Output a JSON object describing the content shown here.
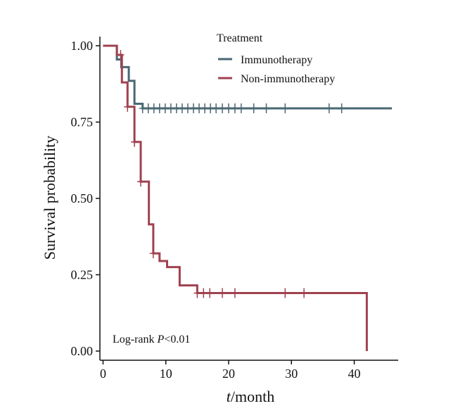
{
  "chart_data": {
    "type": "line",
    "subtype": "kaplan-meier step",
    "xlabel": {
      "italic": "t",
      "rest": "/month"
    },
    "ylabel": "Survival probability",
    "xlim": [
      -0.5,
      47
    ],
    "ylim": [
      -0.03,
      1.03
    ],
    "xticks": [
      0,
      10,
      20,
      30,
      40
    ],
    "yticks": [
      0.0,
      0.25,
      0.5,
      0.75,
      1.0
    ],
    "ytick_labels": [
      "0.00",
      "0.25",
      "0.50",
      "0.75",
      "1.00"
    ],
    "grid": false,
    "legend": {
      "title": "Treatment",
      "position": "top-right"
    },
    "annotation": {
      "prefix": "Log-rank ",
      "italic": "P",
      "suffix": "<0.01"
    },
    "series": [
      {
        "name": "Immunotherapy",
        "color": "#4a6773",
        "steps": [
          [
            0,
            1.0
          ],
          [
            2.2,
            0.955
          ],
          [
            2.9,
            0.93
          ],
          [
            4.1,
            0.885
          ],
          [
            5.0,
            0.81
          ],
          [
            6.3,
            0.795
          ],
          [
            46,
            0.795
          ]
        ],
        "censored": [
          6.3,
          7.2,
          8.1,
          9,
          9.9,
          10.8,
          11.7,
          12.6,
          13.5,
          14.4,
          15.3,
          16.2,
          17.1,
          18,
          19,
          20,
          21,
          22,
          24,
          26,
          29,
          36,
          38
        ]
      },
      {
        "name": "Non-immunotherapy",
        "color": "#a0414f",
        "steps": [
          [
            0,
            1.0
          ],
          [
            2.2,
            0.97
          ],
          [
            3.0,
            0.88
          ],
          [
            3.9,
            0.8
          ],
          [
            5.0,
            0.685
          ],
          [
            6.0,
            0.555
          ],
          [
            7.3,
            0.415
          ],
          [
            8.0,
            0.32
          ],
          [
            9.0,
            0.295
          ],
          [
            10.2,
            0.275
          ],
          [
            12.2,
            0.215
          ],
          [
            15.0,
            0.19
          ],
          [
            42.0,
            0.19
          ],
          [
            42.0,
            0.0
          ]
        ],
        "censored": [
          2.8,
          3.9,
          5.0,
          6.0,
          8.0,
          15.0,
          16.0,
          17.0,
          19.0,
          21.0,
          29.0,
          32.0
        ]
      }
    ]
  }
}
